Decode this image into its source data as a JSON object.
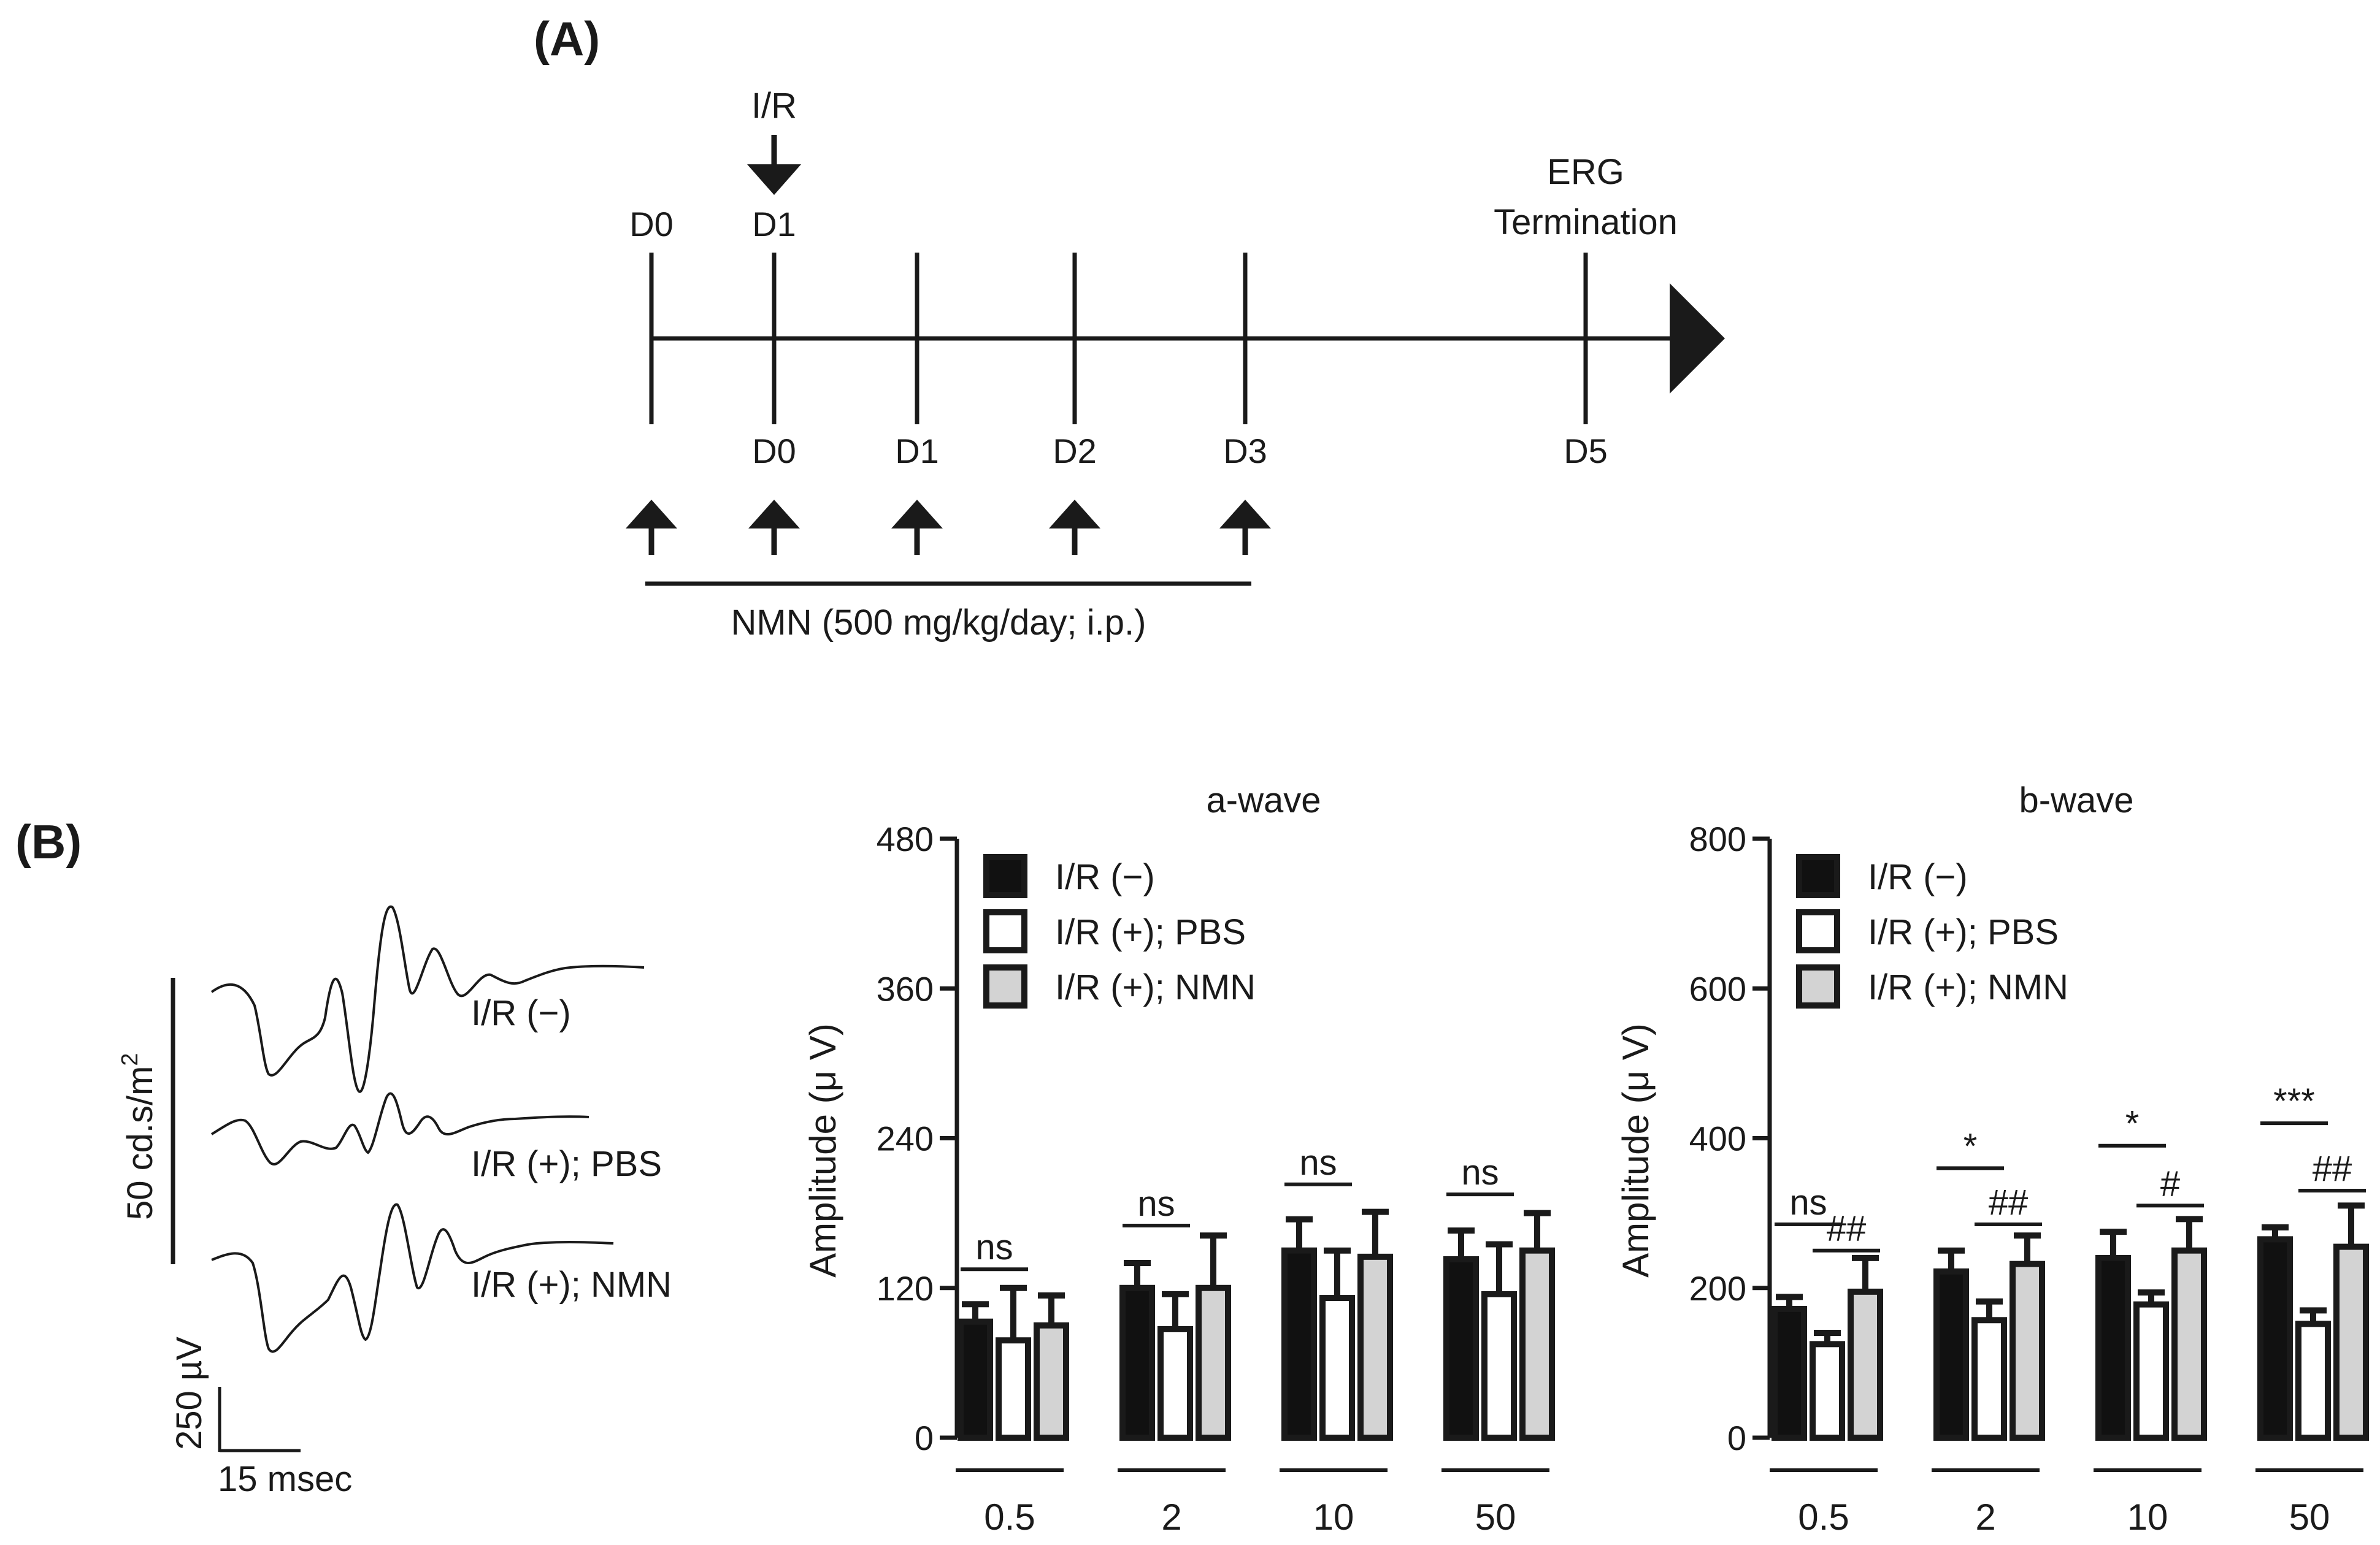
{
  "panel_a": {
    "label": "(A)",
    "ir_label": "I/R",
    "top_days": [
      "D0",
      "D1"
    ],
    "bottom_days": [
      "D0",
      "D1",
      "D2",
      "D3",
      "D5"
    ],
    "erg_line1": "ERG",
    "erg_line2": "Termination",
    "treatment": "NMN (500 mg/kg/day; i.p.)"
  },
  "panel_b": {
    "label": "(B)",
    "trace_labels": [
      "I/R (−)",
      "I/R (+); PBS",
      "I/R (+); NMN"
    ],
    "flash_intensity": "50 cd.s/m",
    "flash_superscript": "2",
    "amplitude_scale": "250 µV",
    "time_scale": "15 msec"
  },
  "colors": {
    "ir_minus": "#111111",
    "pbs": "#ffffff",
    "nmn": "#d3d3d3",
    "ink": "#1a1a1a"
  },
  "chart_data": [
    {
      "type": "bar",
      "title": "a-wave",
      "ylabel": "Amplitude (μ V)",
      "xlabel": "",
      "categories": [
        "0.5",
        "2",
        "10",
        "50"
      ],
      "ylim": [
        0,
        480
      ],
      "yticks": [
        0,
        120,
        240,
        360,
        480
      ],
      "legend_position": "top-left",
      "series": [
        {
          "name": "I/R (−)",
          "values": [
            93,
            120,
            150,
            143
          ],
          "errors": [
            14,
            20,
            25,
            23
          ]
        },
        {
          "name": "I/R (+); PBS",
          "values": [
            78,
            87,
            112,
            115
          ],
          "errors": [
            42,
            28,
            38,
            40
          ]
        },
        {
          "name": "I/R (+); NMN",
          "values": [
            90,
            120,
            145,
            150
          ],
          "errors": [
            24,
            42,
            36,
            30
          ]
        }
      ],
      "annotations": [
        {
          "category": "0.5",
          "from": 0,
          "to": 1,
          "text": "ns",
          "level": 135
        },
        {
          "category": "2",
          "from": 0,
          "to": 1,
          "text": "ns",
          "level": 170
        },
        {
          "category": "10",
          "from": 0,
          "to": 1,
          "text": "ns",
          "level": 203
        },
        {
          "category": "50",
          "from": 0,
          "to": 1,
          "text": "ns",
          "level": 195
        }
      ]
    },
    {
      "type": "bar",
      "title": "b-wave",
      "ylabel": "Amplitude (μ V)",
      "xlabel": "",
      "categories": [
        "0.5",
        "2",
        "10",
        "50"
      ],
      "ylim": [
        0,
        800
      ],
      "yticks": [
        0,
        200,
        400,
        600,
        800
      ],
      "legend_position": "top-left",
      "series": [
        {
          "name": "I/R (−)",
          "values": [
            172,
            222,
            240,
            265
          ],
          "errors": [
            16,
            28,
            35,
            16
          ]
        },
        {
          "name": "I/R (+); PBS",
          "values": [
            125,
            157,
            178,
            152
          ],
          "errors": [
            15,
            25,
            16,
            18
          ]
        },
        {
          "name": "I/R (+); NMN",
          "values": [
            195,
            232,
            250,
            255
          ],
          "errors": [
            45,
            38,
            42,
            55
          ]
        }
      ],
      "annotations": [
        {
          "category": "0.5",
          "from": 0,
          "to": 1,
          "text": "ns",
          "level": 285
        },
        {
          "category": "0.5",
          "from": 1,
          "to": 2,
          "text": "##",
          "level": 250
        },
        {
          "category": "2",
          "from": 0,
          "to": 1,
          "text": "*",
          "level": 360
        },
        {
          "category": "2",
          "from": 1,
          "to": 2,
          "text": "##",
          "level": 285
        },
        {
          "category": "10",
          "from": 0,
          "to": 1,
          "text": "*",
          "level": 390
        },
        {
          "category": "10",
          "from": 1,
          "to": 2,
          "text": "#",
          "level": 310
        },
        {
          "category": "50",
          "from": 0,
          "to": 1,
          "text": "***",
          "level": 420
        },
        {
          "category": "50",
          "from": 1,
          "to": 2,
          "text": "##",
          "level": 330
        }
      ]
    }
  ]
}
